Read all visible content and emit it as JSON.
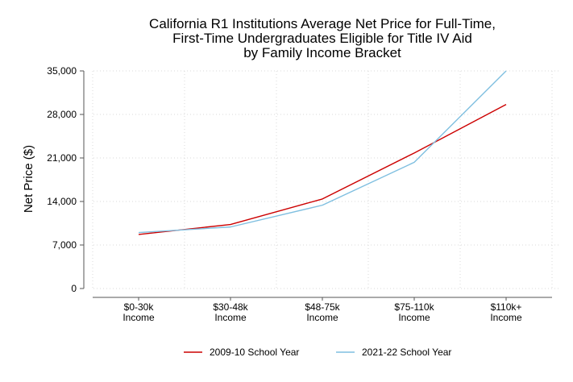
{
  "chart_data": {
    "type": "line",
    "title": [
      "California R1 Institutions Average Net Price for Full-Time,",
      "First-Time Undergraduates Eligible for Title IV Aid",
      "by Family Income Bracket"
    ],
    "xlabel": "",
    "ylabel": "Net Price ($)",
    "ylim": [
      0,
      35000
    ],
    "yticks": [
      0,
      7000,
      14000,
      21000,
      28000,
      35000
    ],
    "ytick_labels": [
      "0",
      "7,000",
      "14,000",
      "21,000",
      "28,000",
      "35,000"
    ],
    "categories": [
      [
        "$0-30k",
        "Income"
      ],
      [
        "$30-48k",
        "Income"
      ],
      [
        "$48-75k",
        "Income"
      ],
      [
        "$75-110k",
        "Income"
      ],
      [
        "$110k+",
        "Income"
      ]
    ],
    "grid": true,
    "legend_position": "bottom",
    "series": [
      {
        "name": "2009-10 School Year",
        "color": "#cc0000",
        "values": [
          8700,
          10300,
          14400,
          21800,
          29600
        ]
      },
      {
        "name": "2021-22 School Year",
        "color": "#7fbfe0",
        "values": [
          9000,
          9900,
          13400,
          20300,
          35000
        ]
      }
    ]
  }
}
